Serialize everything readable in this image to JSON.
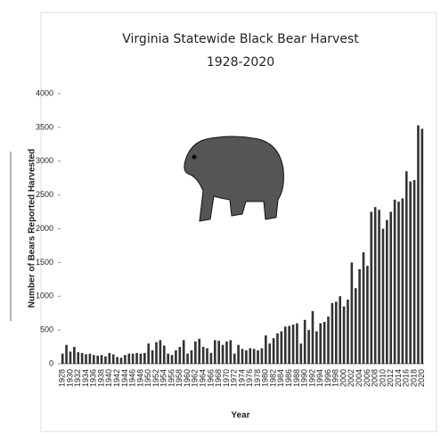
{
  "chart_data": {
    "type": "bar",
    "title": "Virginia Statewide Black Bear Harvest",
    "subtitle": "1928-2020",
    "x_label": "Year",
    "y_label": "Number of Bears Reported Harvested",
    "categories": [
      "1928",
      null,
      "1930",
      null,
      "1932",
      null,
      "1934",
      null,
      "1936",
      null,
      "1938",
      null,
      "1940",
      null,
      "1942",
      null,
      "1944",
      null,
      "1946",
      null,
      "1948",
      null,
      "1950",
      null,
      "1952",
      null,
      "1954",
      null,
      "1956",
      null,
      "1958",
      null,
      "1960",
      null,
      "1962",
      null,
      "1964",
      null,
      "1966",
      null,
      "1968",
      null,
      "1970",
      null,
      "1972",
      null,
      "1974",
      null,
      "1976",
      null,
      "1978",
      null,
      "1980",
      null,
      "1982",
      null,
      "1984",
      null,
      "1986",
      null,
      "1988",
      null,
      "1990",
      null,
      "1992",
      null,
      "1994",
      null,
      "1996",
      null,
      "1998",
      null,
      "2000",
      null,
      "2002",
      null,
      "2004",
      null,
      "2006",
      null,
      "2008",
      null,
      "2010",
      null,
      "2012",
      null,
      "2014",
      null,
      "2016",
      null,
      "2018",
      null,
      "2020"
    ],
    "values": [
      150,
      280,
      180,
      250,
      170,
      160,
      140,
      150,
      130,
      120,
      130,
      110,
      160,
      140,
      100,
      90,
      130,
      150,
      150,
      160,
      150,
      160,
      300,
      200,
      320,
      350,
      270,
      150,
      130,
      200,
      250,
      350,
      150,
      200,
      330,
      370,
      250,
      230,
      160,
      350,
      340,
      280,
      330,
      350,
      150,
      280,
      220,
      200,
      230,
      220,
      200,
      230,
      420,
      300,
      380,
      450,
      480,
      550,
      560,
      580,
      600,
      300,
      650,
      500,
      780,
      480,
      600,
      620,
      700,
      900,
      920,
      1000,
      850,
      950,
      1500,
      1120,
      1400,
      1650,
      1450,
      2250,
      2320,
      2280,
      2000,
      2130,
      2250,
      2430,
      2400,
      2450,
      2850,
      2700,
      2720,
      3530,
      3480
    ],
    "color": "#333333",
    "ylim": [
      0,
      4000
    ],
    "yticks": [
      0,
      500,
      1000,
      1500,
      2000,
      2500,
      3000,
      3500,
      4000
    ],
    "grid": false
  }
}
